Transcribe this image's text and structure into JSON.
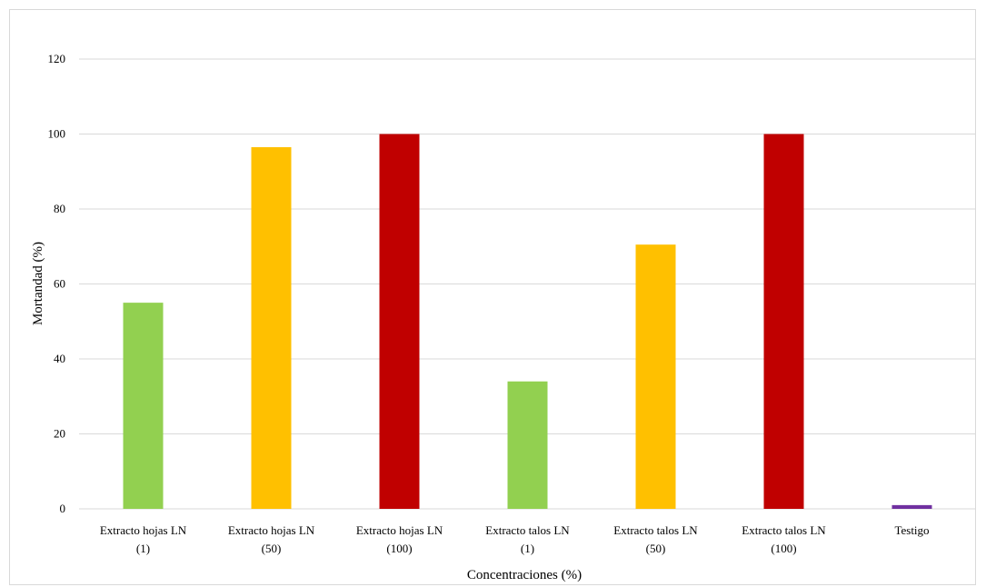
{
  "chart_data": {
    "type": "bar",
    "categories": [
      [
        "Extracto hojas LN",
        "(1)"
      ],
      [
        "Extracto hojas LN",
        "(50)"
      ],
      [
        "Extracto hojas LN",
        "(100)"
      ],
      [
        "Extracto talos LN",
        "(1)"
      ],
      [
        "Extracto talos LN",
        "(50)"
      ],
      [
        "Extracto talos LN",
        "(100)"
      ],
      [
        "Testigo"
      ]
    ],
    "values": [
      55,
      96.5,
      100,
      34,
      70.5,
      100,
      1
    ],
    "bar_colors": [
      "#92d050",
      "#ffc000",
      "#c00000",
      "#92d050",
      "#ffc000",
      "#c00000",
      "#7030a0"
    ],
    "xlabel": "Concentraciones (%)",
    "ylabel": "Mortandad (%)",
    "ylim": [
      0,
      120
    ],
    "yticks": [
      0,
      20,
      40,
      60,
      80,
      100,
      120
    ],
    "grid": true,
    "gridline_color": "#d9d9d9",
    "legend": "none"
  }
}
